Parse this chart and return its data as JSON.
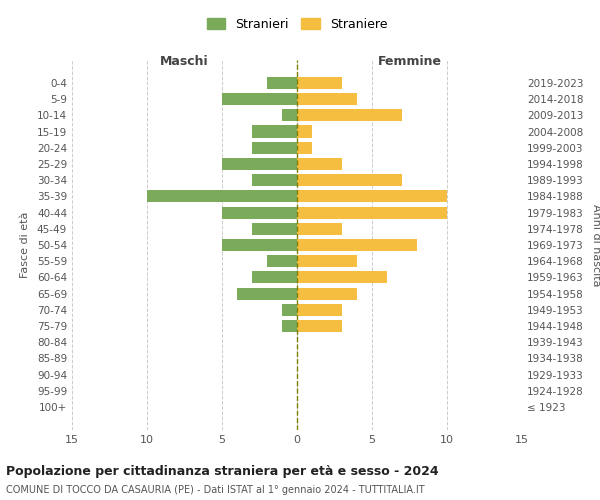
{
  "age_groups": [
    "100+",
    "95-99",
    "90-94",
    "85-89",
    "80-84",
    "75-79",
    "70-74",
    "65-69",
    "60-64",
    "55-59",
    "50-54",
    "45-49",
    "40-44",
    "35-39",
    "30-34",
    "25-29",
    "20-24",
    "15-19",
    "10-14",
    "5-9",
    "0-4"
  ],
  "birth_years": [
    "≤ 1923",
    "1924-1928",
    "1929-1933",
    "1934-1938",
    "1939-1943",
    "1944-1948",
    "1949-1953",
    "1954-1958",
    "1959-1963",
    "1964-1968",
    "1969-1973",
    "1974-1978",
    "1979-1983",
    "1984-1988",
    "1989-1993",
    "1994-1998",
    "1999-2003",
    "2004-2008",
    "2009-2013",
    "2014-2018",
    "2019-2023"
  ],
  "maschi": [
    0,
    0,
    0,
    0,
    0,
    1,
    1,
    4,
    3,
    2,
    5,
    3,
    5,
    10,
    3,
    5,
    3,
    3,
    1,
    5,
    2
  ],
  "femmine": [
    0,
    0,
    0,
    0,
    0,
    3,
    3,
    4,
    6,
    4,
    8,
    3,
    10,
    10,
    7,
    3,
    1,
    1,
    7,
    4,
    3
  ],
  "maschi_color": "#7aaa5a",
  "femmine_color": "#f5be41",
  "maschi_label": "Stranieri",
  "femmine_label": "Straniere",
  "left_header": "Maschi",
  "right_header": "Femmine",
  "left_yaxis_label": "Fasce di età",
  "right_yaxis_label": "Anni di nascita",
  "xlim": 15,
  "title": "Popolazione per cittadinanza straniera per età e sesso - 2024",
  "subtitle": "COMUNE DI TOCCO DA CASAURIA (PE) - Dati ISTAT al 1° gennaio 2024 - TUTTITALIA.IT",
  "background_color": "#ffffff",
  "grid_color": "#cccccc",
  "bar_height": 0.75
}
